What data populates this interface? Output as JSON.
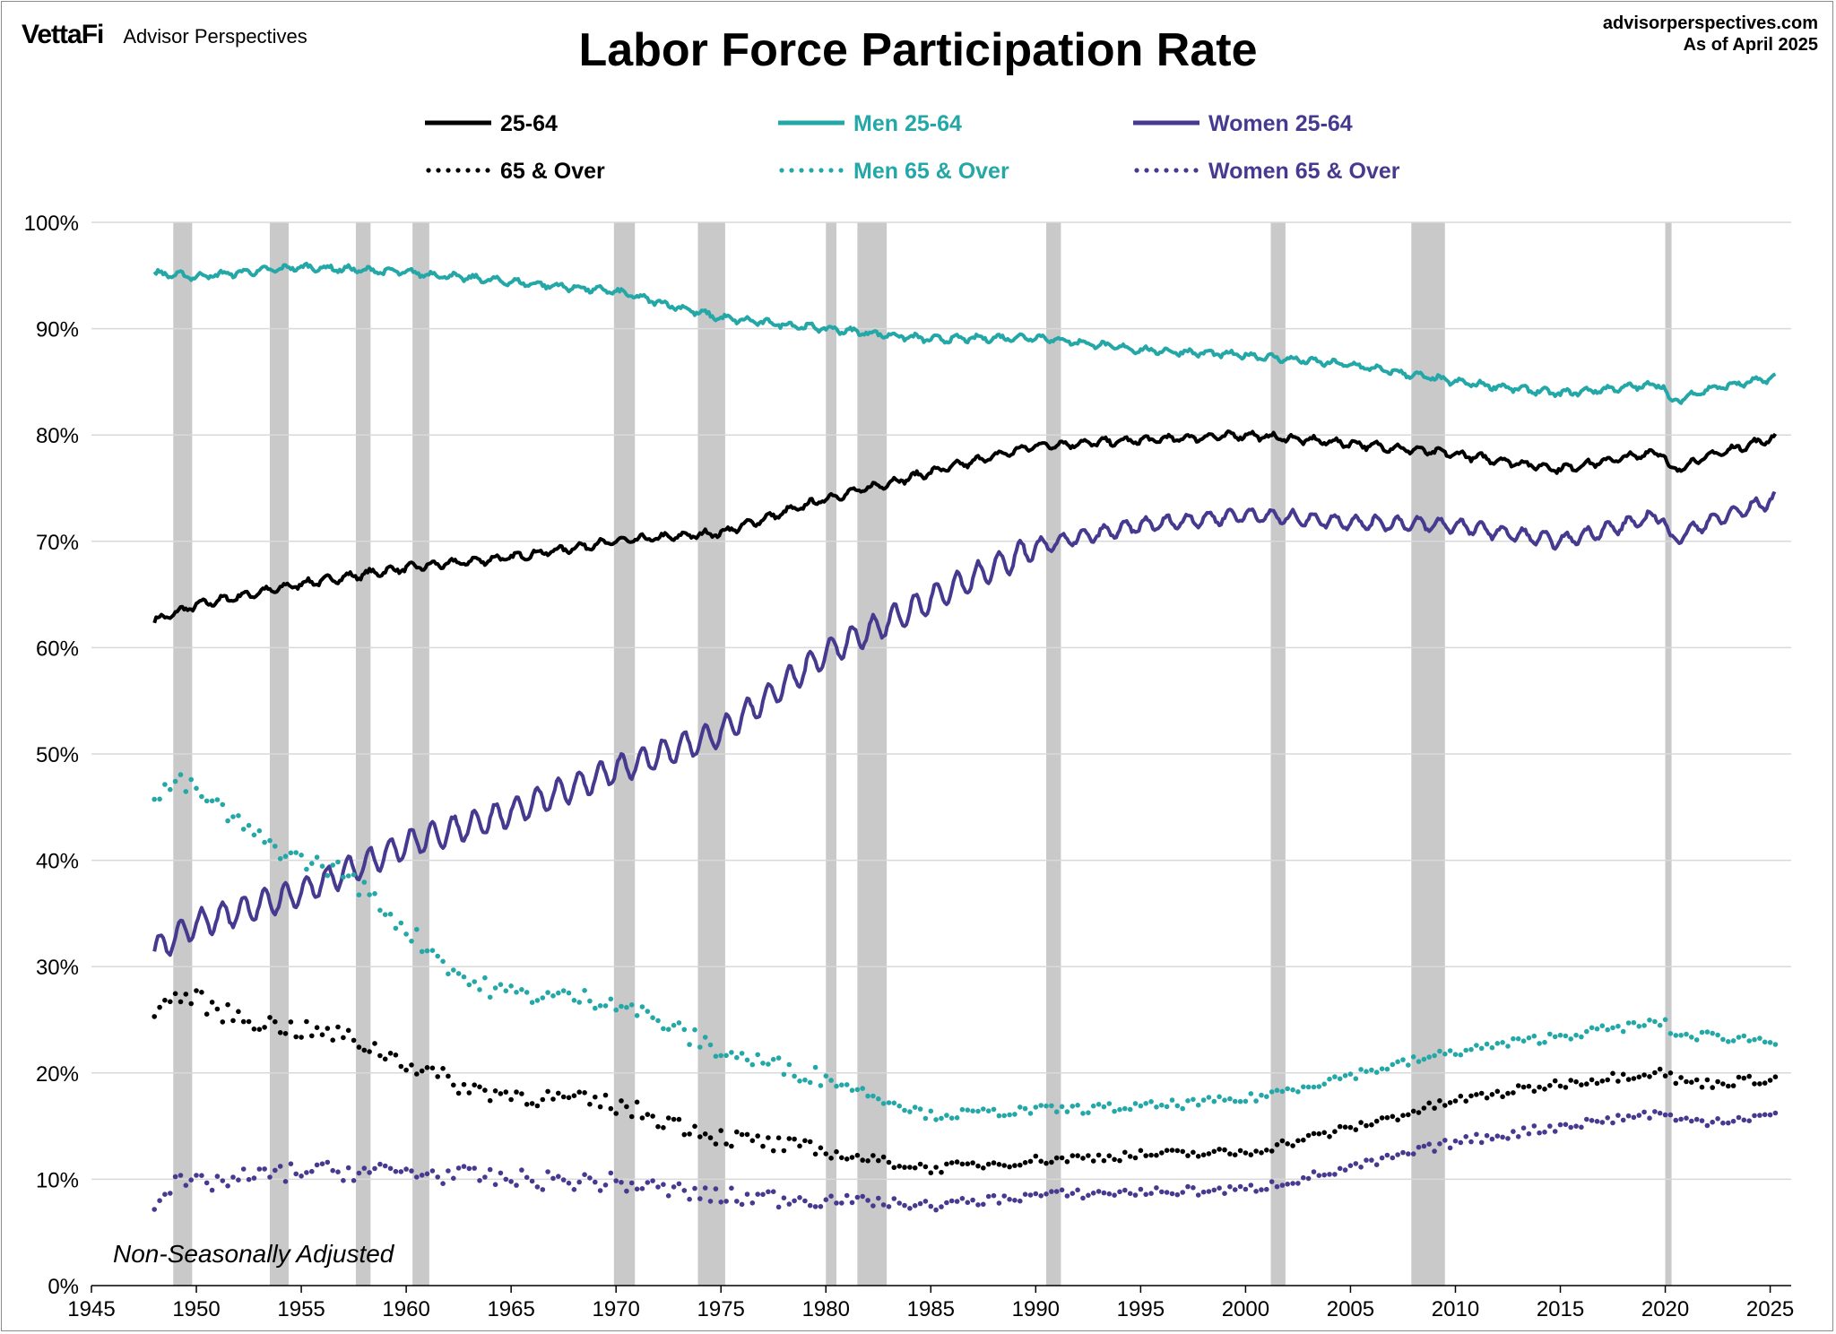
{
  "header": {
    "brand_logo": "VettaFi",
    "brand_name": "Advisor Perspectives",
    "source_line1": "advisorperspectives.com",
    "source_line2": "As of April 2025"
  },
  "colors": {
    "black": "#000000",
    "teal": "#24a7a7",
    "purple": "#453a8f",
    "recession": "#c9c9c9",
    "grid": "#d9d9d9"
  },
  "chart_data": {
    "type": "line",
    "title": "Labor Force Participation Rate",
    "annotation": "Non-Seasonally Adjusted",
    "xlabel": "",
    "ylabel": "",
    "xlim": [
      1945,
      2026
    ],
    "ylim": [
      0,
      100
    ],
    "x_ticks": [
      1945,
      1950,
      1955,
      1960,
      1965,
      1970,
      1975,
      1980,
      1985,
      1990,
      1995,
      2000,
      2005,
      2010,
      2015,
      2020,
      2025
    ],
    "y_ticks": [
      0,
      10,
      20,
      30,
      40,
      50,
      60,
      70,
      80,
      90,
      100
    ],
    "y_tick_labels": [
      "0%",
      "10%",
      "20%",
      "30%",
      "40%",
      "50%",
      "60%",
      "70%",
      "80%",
      "90%",
      "100%"
    ],
    "grid": "horizontal",
    "legend_position": "top",
    "recessions": [
      [
        1948.9,
        1949.8
      ],
      [
        1953.5,
        1954.4
      ],
      [
        1957.6,
        1958.3
      ],
      [
        1960.3,
        1961.1
      ],
      [
        1969.9,
        1970.9
      ],
      [
        1973.9,
        1975.2
      ],
      [
        1980.0,
        1980.5
      ],
      [
        1981.5,
        1982.9
      ],
      [
        1990.5,
        1991.2
      ],
      [
        2001.2,
        2001.9
      ],
      [
        2007.9,
        2009.5
      ],
      [
        2020.0,
        2020.3
      ]
    ],
    "series": [
      {
        "name": "25-64",
        "style": "solid",
        "color": "#000000",
        "x": [
          1948,
          1950,
          1955,
          1960,
          1965,
          1970,
          1975,
          1980,
          1985,
          1990,
          1995,
          2000,
          2005,
          2010,
          2015,
          2019.9,
          2020.2,
          2022,
          2025.3
        ],
        "y": [
          62.5,
          64.0,
          66.0,
          67.5,
          68.5,
          70.0,
          70.8,
          74.0,
          76.5,
          79.0,
          79.5,
          80.0,
          79.2,
          78.2,
          76.8,
          78.5,
          76.5,
          78.0,
          79.8
        ]
      },
      {
        "name": "Men 25-64",
        "style": "solid",
        "color": "#24a7a7",
        "x": [
          1948,
          1950,
          1955,
          1960,
          1965,
          1970,
          1975,
          1980,
          1985,
          1990,
          1995,
          2000,
          2005,
          2010,
          2015,
          2019.9,
          2020.2,
          2022,
          2025.3
        ],
        "y": [
          95.2,
          94.9,
          95.8,
          95.3,
          94.4,
          93.5,
          91.0,
          90.0,
          89.0,
          89.2,
          88.0,
          87.5,
          86.6,
          85.0,
          83.9,
          84.8,
          83.0,
          84.3,
          85.4
        ]
      },
      {
        "name": "Women 25-64",
        "style": "solid",
        "color": "#453a8f",
        "x": [
          1948,
          1950,
          1955,
          1960,
          1965,
          1970,
          1975,
          1980,
          1985,
          1990,
          1995,
          2000,
          2005,
          2010,
          2015,
          2019.9,
          2020.2,
          2022,
          2025.3
        ],
        "y": [
          31.5,
          34.0,
          37.0,
          41.5,
          44.5,
          48.5,
          52.0,
          59.5,
          64.5,
          69.5,
          71.5,
          72.5,
          71.8,
          71.5,
          70.0,
          72.5,
          70.0,
          71.8,
          74.0
        ]
      },
      {
        "name": "65 & Over",
        "style": "dotted",
        "color": "#000000",
        "x": [
          1948,
          1949,
          1950,
          1951,
          1953,
          1955,
          1957,
          1960,
          1963,
          1965,
          1970,
          1975,
          1980,
          1985,
          1990,
          1995,
          2000,
          2005,
          2010,
          2015,
          2019.9,
          2020.5,
          2022,
          2025.3
        ],
        "y": [
          25.7,
          27.2,
          27.0,
          25.8,
          24.8,
          24.0,
          23.5,
          21.0,
          18.5,
          18.0,
          17.0,
          14.0,
          12.5,
          11.0,
          11.8,
          12.3,
          12.5,
          14.8,
          17.4,
          19.0,
          20.2,
          19.3,
          19.0,
          19.5
        ]
      },
      {
        "name": "Men 65 & Over",
        "style": "dotted",
        "color": "#24a7a7",
        "x": [
          1948,
          1949,
          1950,
          1951,
          1953,
          1955,
          1957,
          1960,
          1963,
          1965,
          1970,
          1975,
          1980,
          1985,
          1990,
          1995,
          2000,
          2005,
          2010,
          2015,
          2019.9,
          2020.5,
          2022,
          2025.3
        ],
        "y": [
          45.5,
          47.5,
          46.5,
          45.0,
          42.0,
          40.0,
          39.0,
          33.5,
          28.5,
          27.5,
          26.8,
          22.0,
          19.5,
          16.0,
          16.5,
          16.8,
          17.5,
          19.8,
          22.0,
          23.5,
          24.8,
          23.5,
          23.5,
          23.0
        ]
      },
      {
        "name": "Women 65 & Over",
        "style": "dotted",
        "color": "#453a8f",
        "x": [
          1948,
          1949,
          1950,
          1955,
          1960,
          1965,
          1970,
          1975,
          1980,
          1985,
          1990,
          1995,
          2000,
          2005,
          2010,
          2015,
          2019.9,
          2020.5,
          2022,
          2025.3
        ],
        "y": [
          8.0,
          9.5,
          9.5,
          10.8,
          10.7,
          10.0,
          9.7,
          8.3,
          8.2,
          7.5,
          8.5,
          8.8,
          9.0,
          11.0,
          13.5,
          15.0,
          16.3,
          15.5,
          15.5,
          16.0
        ]
      }
    ]
  }
}
